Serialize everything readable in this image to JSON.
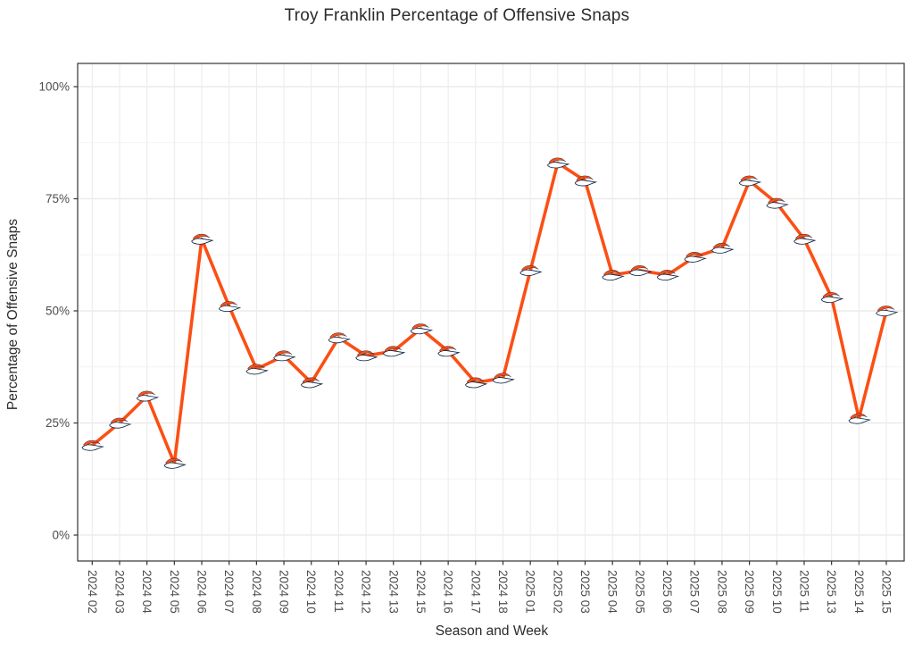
{
  "chart_data": {
    "type": "line",
    "title": "Troy Franklin Percentage of Offensive Snaps",
    "xlabel": "Season and Week",
    "ylabel": "Percentage of Offensive Snaps",
    "categories": [
      "2024 02",
      "2024 03",
      "2024 04",
      "2024 05",
      "2024 06",
      "2024 07",
      "2024 08",
      "2024 09",
      "2024 10",
      "2024 11",
      "2024 12",
      "2024 13",
      "2024 15",
      "2024 16",
      "2024 17",
      "2024 18",
      "2025 01",
      "2025 02",
      "2025 03",
      "2025 04",
      "2025 05",
      "2025 06",
      "2025 07",
      "2025 08",
      "2025 09",
      "2025 10",
      "2025 11",
      "2025 13",
      "2025 14",
      "2025 15"
    ],
    "values": [
      20,
      25,
      31,
      16,
      66,
      51,
      37,
      40,
      34,
      44,
      40,
      41,
      46,
      41,
      34,
      35,
      59,
      83,
      79,
      58,
      59,
      58,
      62,
      64,
      79,
      74,
      66,
      53,
      26,
      50
    ],
    "ylim": [
      0,
      100
    ],
    "ytick_values": [
      0,
      25,
      50,
      75,
      100
    ],
    "ytick_labels": [
      "0%",
      "25%",
      "50%",
      "75%",
      "100%"
    ],
    "yminor_values": [
      12.5,
      37.5,
      62.5,
      87.5
    ],
    "grid": "on",
    "legend": "none",
    "line_color": "#FB4F14",
    "marker": "denver-broncos-horse-logo",
    "marker_colors": {
      "outline": "#0A2343",
      "body": "#FFFFFF",
      "mane": "#FB4F14"
    }
  }
}
